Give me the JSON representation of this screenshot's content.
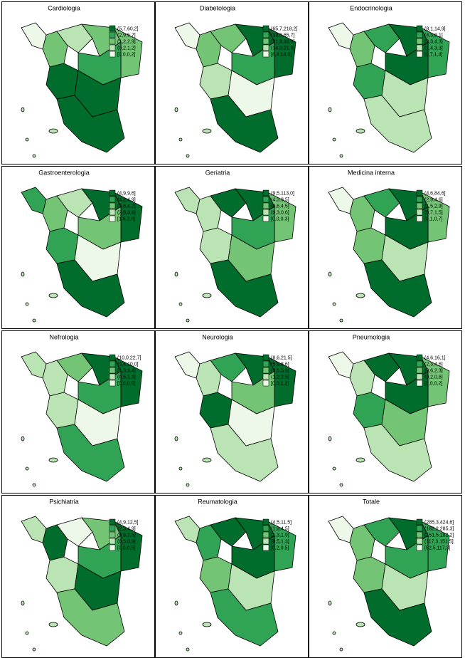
{
  "legend_colors": [
    "#006d2c",
    "#31a354",
    "#74c476",
    "#bae4b3",
    "#edf8e9"
  ],
  "panels": [
    {
      "title": "Cardiologia",
      "legend": [
        "(5,7,60,2]",
        "(2,9,5,7]",
        "(1,2,2,9]",
        "(0,2,1,2]",
        "[0,0,0,2]"
      ],
      "region_colors": [
        "#edf8e9",
        "#74c476",
        "#bae4b3",
        "#74c476",
        "#74c476",
        "#006d2c",
        "#31a354",
        "#006d2c",
        "#006d2c"
      ]
    },
    {
      "title": "Diabetologia",
      "legend": [
        "(65,7,218,2]",
        "(33,0,65,7]",
        "(21,9,33,0]",
        "(14,0,21,9]",
        "[8,4,14,0]"
      ],
      "region_colors": [
        "#edf8e9",
        "#74c476",
        "#74c476",
        "#006d2c",
        "#006d2c",
        "#bae4b3",
        "#31a354",
        "#edf8e9",
        "#006d2c"
      ]
    },
    {
      "title": "Endocrinologia",
      "legend": [
        "(8,1,14,9]",
        "(4,3,8,1]",
        "(3,3,4,3]",
        "(1,4,3,3]",
        "[0,7,1,4]"
      ],
      "region_colors": [
        "#edf8e9",
        "#74c476",
        "#31a354",
        "#006d2c",
        "#31a354",
        "#31a354",
        "#006d2c",
        "#bae4b3",
        "#bae4b3"
      ]
    },
    {
      "title": "Gastroenterologia",
      "legend": [
        "(4,9,9,6]",
        "(4,2,4,9]",
        "(3,6,4,2]",
        "(2,8,3,6]",
        "[1,6,2,8]"
      ],
      "region_colors": [
        "#31a354",
        "#74c476",
        "#bae4b3",
        "#006d2c",
        "#006d2c",
        "#31a354",
        "#74c476",
        "#edf8e9",
        "#006d2c"
      ]
    },
    {
      "title": "Geriatria",
      "legend": [
        "(9,5,113,0]",
        "(4,5,9,5]",
        "(0,6,4,5]",
        "(0,3,0,6]",
        "[0,0,0,3]"
      ],
      "region_colors": [
        "#bae4b3",
        "#bae4b3",
        "#006d2c",
        "#006d2c",
        "#74c476",
        "#bae4b3",
        "#31a354",
        "#74c476",
        "#006d2c"
      ]
    },
    {
      "title": "Medicina interna",
      "legend": [
        "(4,6,84,6]",
        "(2,9,4,6]",
        "(1,5,2,9]",
        "(0,7,1,5]",
        "[0,1,0,7]"
      ],
      "region_colors": [
        "#edf8e9",
        "#74c476",
        "#31a354",
        "#006d2c",
        "#74c476",
        "#74c476",
        "#006d2c",
        "#bae4b3",
        "#006d2c"
      ]
    },
    {
      "title": "Nefrologia",
      "legend": [
        "(10,0,22,7]",
        "(3,4,10,0]",
        "(1,3,3,4]",
        "(0,5,1,3]",
        "[0,0,0,5]"
      ],
      "region_colors": [
        "#bae4b3",
        "#bae4b3",
        "#74c476",
        "#006d2c",
        "#006d2c",
        "#bae4b3",
        "#31a354",
        "#edf8e9",
        "#31a354"
      ]
    },
    {
      "title": "Neurologia",
      "legend": [
        "(8,6,21,5]",
        "(5,9,8,6]",
        "(2,5,5,9]",
        "(1,2,2,5]",
        "[0,0,1,2]"
      ],
      "region_colors": [
        "#edf8e9",
        "#bae4b3",
        "#31a354",
        "#006d2c",
        "#006d2c",
        "#006d2c",
        "#74c476",
        "#edf8e9",
        "#bae4b3"
      ]
    },
    {
      "title": "Pneumologia",
      "legend": [
        "(4,6,16,1]",
        "(2,3,4,6]",
        "(0,6,2,3]",
        "(0,2,0,6]",
        "[0,0,0,2]"
      ],
      "region_colors": [
        "#edf8e9",
        "#bae4b3",
        "#006d2c",
        "#006d2c",
        "#74c476",
        "#31a354",
        "#006d2c",
        "#74c476",
        "#bae4b3"
      ]
    },
    {
      "title": "Psichiatria",
      "legend": [
        "(4,9,12,5]",
        "(2,5,4,9]",
        "(0,9,2,5]",
        "(0,5,0,9]",
        "[0,0,0,5]"
      ],
      "region_colors": [
        "#bae4b3",
        "#006d2c",
        "#edf8e9",
        "#74c476",
        "#006d2c",
        "#bae4b3",
        "#31a354",
        "#006d2c",
        "#74c476"
      ]
    },
    {
      "title": "Reumatologia",
      "legend": [
        "(4,5,11,5]",
        "(1,9,4,5]",
        "(1,3,1,9]",
        "(0,5,1,3]",
        "[0,2,0,5]"
      ],
      "region_colors": [
        "#bae4b3",
        "#31a354",
        "#006d2c",
        "#006d2c",
        "#31a354",
        "#74c476",
        "#006d2c",
        "#bae4b3",
        "#31a354"
      ]
    },
    {
      "title": "Totale",
      "legend": [
        "(285,3,424,6]",
        "(182,2,285,3]",
        "(151,5,182,2]",
        "(117,3,151,5]",
        "[52,5,117,3]"
      ],
      "region_colors": [
        "#edf8e9",
        "#74c476",
        "#31a354",
        "#006d2c",
        "#31a354",
        "#74c476",
        "#31a354",
        "#bae4b3",
        "#006d2c"
      ]
    }
  ]
}
